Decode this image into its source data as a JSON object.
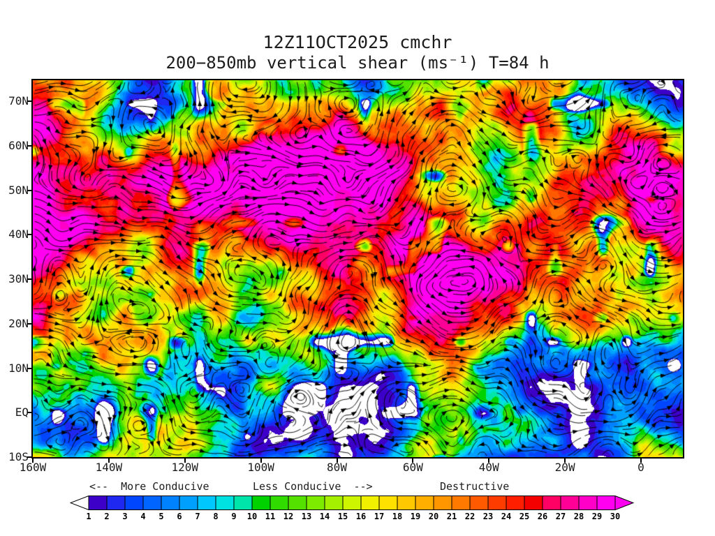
{
  "chart_data": {
    "type": "heatmap",
    "title": "12Z11OCT2025 cmchr",
    "subtitle": "200−850mb vertical shear (ms⁻¹) T=84 h",
    "units": "ms⁻¹",
    "value_range": [
      1,
      30
    ],
    "overlay": "shear-vector streamlines with arrowheads",
    "y_axis": {
      "label": "latitude",
      "ticks": [
        "70N",
        "60N",
        "50N",
        "40N",
        "30N",
        "20N",
        "10N",
        "EQ",
        "10S"
      ]
    },
    "x_axis": {
      "label": "longitude",
      "ticks": [
        "160W",
        "140W",
        "120W",
        "100W",
        "80W",
        "60W",
        "40W",
        "20W",
        "0"
      ]
    },
    "colorbar": {
      "edge_labels": [
        "1",
        "2",
        "3",
        "4",
        "5",
        "6",
        "7",
        "8",
        "9",
        "10",
        "11",
        "12",
        "13",
        "14",
        "15",
        "16",
        "17",
        "18",
        "19",
        "20",
        "21",
        "22",
        "23",
        "24",
        "25",
        "26",
        "27",
        "28",
        "29",
        "30"
      ],
      "segment_colors": [
        "#3c00c8",
        "#1e28f0",
        "#0046ff",
        "#0064ff",
        "#0082ff",
        "#00a0ff",
        "#00c8ff",
        "#00e1e1",
        "#00e6aa",
        "#00d200",
        "#30dc00",
        "#55e100",
        "#7deb00",
        "#a5f000",
        "#cdf500",
        "#f0f000",
        "#ffe100",
        "#ffc800",
        "#ffaf00",
        "#ff9600",
        "#ff7800",
        "#ff5a00",
        "#ff3c00",
        "#ff1e00",
        "#f50000",
        "#ff0064",
        "#ff0096",
        "#ff00c8",
        "#ff00f0"
      ],
      "below_min_color": "#ffffff",
      "arrow_left_color": "#ffffff",
      "arrow_right_color": "#ff00f0",
      "captions": {
        "left": "<--  More Conducive",
        "mid": "Less Conducive  -->",
        "right": "Destructive"
      }
    }
  }
}
